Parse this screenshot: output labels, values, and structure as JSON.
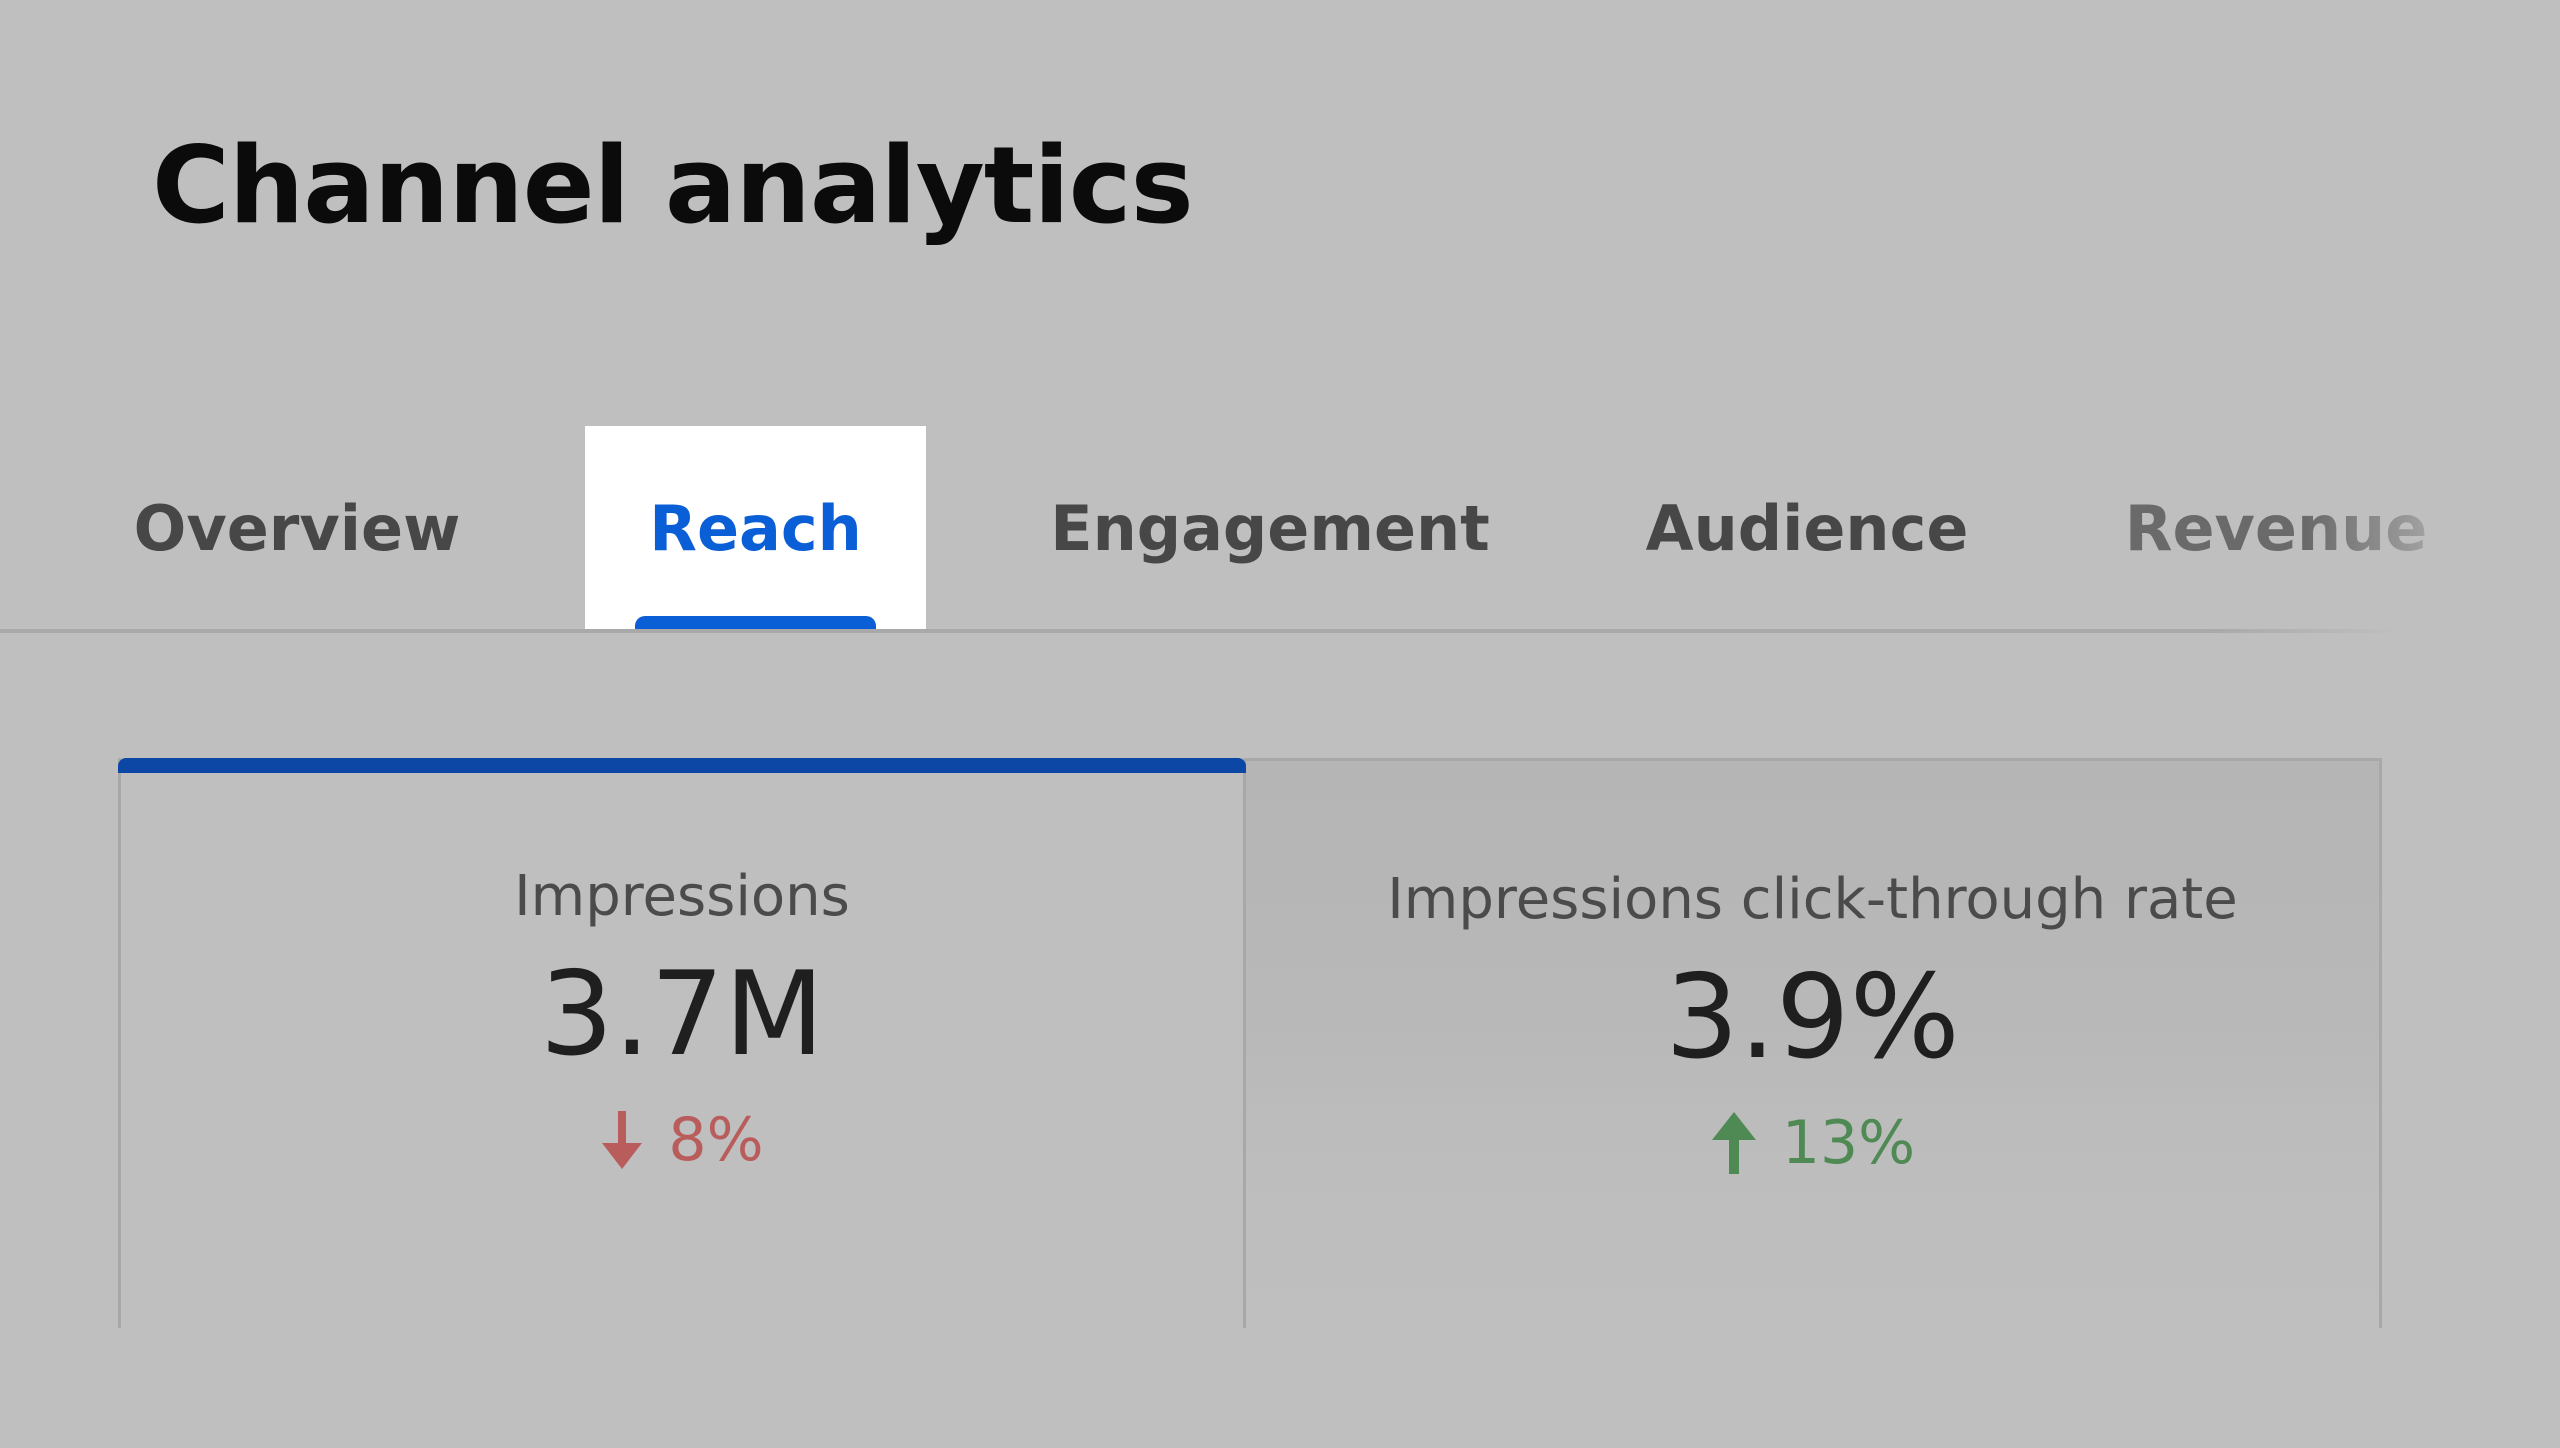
{
  "page": {
    "title": "Channel analytics"
  },
  "tabs": [
    {
      "label": "Overview",
      "active": false
    },
    {
      "label": "Reach",
      "active": true
    },
    {
      "label": "Engagement",
      "active": false
    },
    {
      "label": "Audience",
      "active": false
    },
    {
      "label": "Revenue",
      "active": false
    }
  ],
  "cards": [
    {
      "label": "Impressions",
      "value": "3.7M",
      "change": "8%",
      "direction": "down",
      "selected": true
    },
    {
      "label": "Impressions click-through rate",
      "value": "3.9%",
      "change": "13%",
      "direction": "up",
      "selected": false
    }
  ],
  "icons": {
    "down": "arrow-down-icon",
    "up": "arrow-up-icon"
  },
  "colors": {
    "background": "#bfbfbf",
    "accent": "#0a5fd6",
    "selected_bar": "#0d47a6",
    "negative": "#b95c5c",
    "positive": "#4f8a55"
  }
}
